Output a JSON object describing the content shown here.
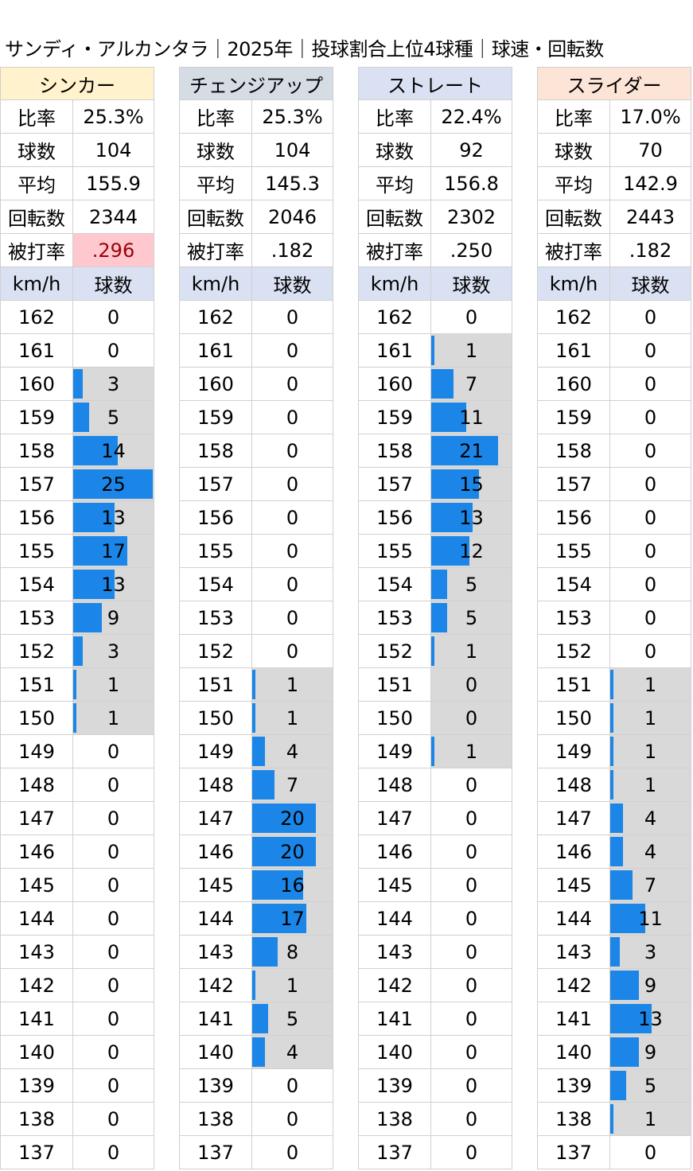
{
  "title": "サンディ・アルカンタラ｜2025年｜投球割合上位4球種｜球速・回転数",
  "labels": {
    "ratio": "比率",
    "count": "球数",
    "avg": "平均",
    "spin": "回転数",
    "ba": "被打率",
    "kmh": "km/h",
    "pitches": "球数"
  },
  "chart_data": {
    "type": "table",
    "speeds": [
      162,
      161,
      160,
      159,
      158,
      157,
      156,
      155,
      154,
      153,
      152,
      151,
      150,
      149,
      148,
      147,
      146,
      145,
      144,
      143,
      142,
      141,
      140,
      139,
      138,
      137
    ],
    "pitch_types": [
      {
        "name": "シンカー",
        "header_color": "#fff2cc",
        "ratio": "25.3%",
        "count": "104",
        "avg": "155.9",
        "spin": "2344",
        "ba": ".296",
        "ba_highlight": true,
        "counts": [
          0,
          0,
          3,
          5,
          14,
          25,
          13,
          17,
          13,
          9,
          3,
          1,
          1,
          0,
          0,
          0,
          0,
          0,
          0,
          0,
          0,
          0,
          0,
          0,
          0,
          0
        ]
      },
      {
        "name": "チェンジアップ",
        "header_color": "#d6dce4",
        "ratio": "25.3%",
        "count": "104",
        "avg": "145.3",
        "spin": "2046",
        "ba": ".182",
        "ba_highlight": false,
        "counts": [
          0,
          0,
          0,
          0,
          0,
          0,
          0,
          0,
          0,
          0,
          0,
          1,
          1,
          4,
          7,
          20,
          20,
          16,
          17,
          8,
          1,
          5,
          4,
          0,
          0,
          0
        ]
      },
      {
        "name": "ストレート",
        "header_color": "#d9e1f2",
        "ratio": "22.4%",
        "count": "92",
        "avg": "156.8",
        "spin": "2302",
        "ba": ".250",
        "ba_highlight": false,
        "counts": [
          0,
          1,
          7,
          11,
          21,
          15,
          13,
          12,
          5,
          5,
          1,
          0,
          0,
          1,
          0,
          0,
          0,
          0,
          0,
          0,
          0,
          0,
          0,
          0,
          0,
          0
        ]
      },
      {
        "name": "スライダー",
        "header_color": "#fce4d6",
        "ratio": "17.0%",
        "count": "70",
        "avg": "142.9",
        "spin": "2443",
        "ba": ".182",
        "ba_highlight": false,
        "counts": [
          0,
          0,
          0,
          0,
          0,
          0,
          0,
          0,
          0,
          0,
          0,
          1,
          1,
          1,
          1,
          4,
          4,
          7,
          11,
          3,
          9,
          13,
          9,
          5,
          1,
          0
        ]
      }
    ],
    "bar_scale_max": 25,
    "bar_color": "#1b86e8",
    "band_color": "#d9d9d9"
  }
}
